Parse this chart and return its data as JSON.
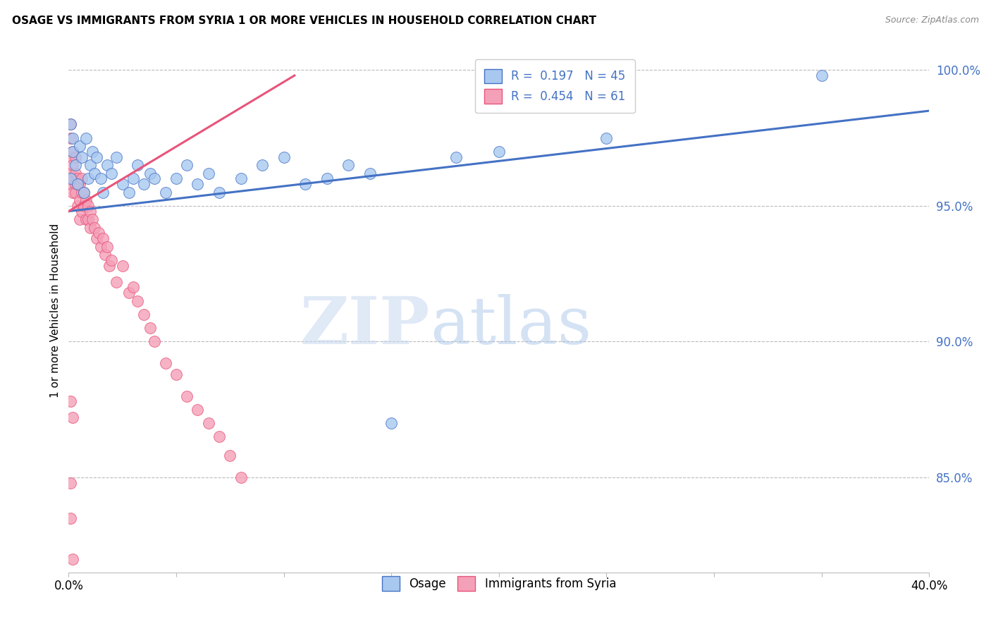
{
  "title": "OSAGE VS IMMIGRANTS FROM SYRIA 1 OR MORE VEHICLES IN HOUSEHOLD CORRELATION CHART",
  "source": "Source: ZipAtlas.com",
  "ylabel": "1 or more Vehicles in Household",
  "xlabel_osage": "Osage",
  "xlabel_syria": "Immigrants from Syria",
  "xmin": 0.0,
  "xmax": 0.4,
  "ymin": 0.815,
  "ymax": 1.008,
  "yticks": [
    0.85,
    0.9,
    0.95,
    1.0
  ],
  "ytick_labels": [
    "85.0%",
    "90.0%",
    "95.0%",
    "100.0%"
  ],
  "xticks": [
    0.0,
    0.05,
    0.1,
    0.15,
    0.2,
    0.25,
    0.3,
    0.35,
    0.4
  ],
  "xtick_labels": [
    "0.0%",
    "",
    "",
    "",
    "",
    "",
    "",
    "",
    "40.0%"
  ],
  "legend_r_osage": "0.197",
  "legend_n_osage": "45",
  "legend_r_syria": "0.454",
  "legend_n_syria": "61",
  "color_osage": "#A8C8F0",
  "color_syria": "#F4A0B8",
  "trend_color_osage": "#4472C4",
  "trend_color_syria": "#E8547A",
  "watermark_zip": "ZIP",
  "watermark_atlas": "atlas",
  "osage_x": [
    0.001,
    0.001,
    0.002,
    0.002,
    0.003,
    0.004,
    0.005,
    0.006,
    0.007,
    0.008,
    0.009,
    0.01,
    0.011,
    0.012,
    0.013,
    0.015,
    0.016,
    0.018,
    0.02,
    0.022,
    0.025,
    0.028,
    0.03,
    0.032,
    0.035,
    0.038,
    0.04,
    0.045,
    0.05,
    0.055,
    0.06,
    0.065,
    0.07,
    0.08,
    0.09,
    0.1,
    0.11,
    0.12,
    0.13,
    0.14,
    0.15,
    0.18,
    0.2,
    0.25,
    0.35
  ],
  "osage_y": [
    0.96,
    0.98,
    0.97,
    0.975,
    0.965,
    0.958,
    0.972,
    0.968,
    0.955,
    0.975,
    0.96,
    0.965,
    0.97,
    0.962,
    0.968,
    0.96,
    0.955,
    0.965,
    0.962,
    0.968,
    0.958,
    0.955,
    0.96,
    0.965,
    0.958,
    0.962,
    0.96,
    0.955,
    0.96,
    0.965,
    0.958,
    0.962,
    0.955,
    0.96,
    0.965,
    0.968,
    0.958,
    0.96,
    0.965,
    0.962,
    0.87,
    0.968,
    0.97,
    0.975,
    0.998
  ],
  "syria_x": [
    0.001,
    0.001,
    0.001,
    0.001,
    0.001,
    0.002,
    0.002,
    0.002,
    0.002,
    0.003,
    0.003,
    0.003,
    0.003,
    0.004,
    0.004,
    0.004,
    0.005,
    0.005,
    0.005,
    0.006,
    0.006,
    0.006,
    0.007,
    0.007,
    0.008,
    0.008,
    0.009,
    0.009,
    0.01,
    0.01,
    0.011,
    0.012,
    0.013,
    0.014,
    0.015,
    0.016,
    0.017,
    0.018,
    0.019,
    0.02,
    0.022,
    0.025,
    0.028,
    0.03,
    0.032,
    0.035,
    0.038,
    0.04,
    0.045,
    0.05,
    0.055,
    0.06,
    0.065,
    0.07,
    0.075,
    0.08,
    0.001,
    0.002,
    0.001,
    0.002,
    0.001
  ],
  "syria_y": [
    0.968,
    0.975,
    0.98,
    0.958,
    0.962,
    0.965,
    0.97,
    0.96,
    0.955,
    0.958,
    0.962,
    0.968,
    0.955,
    0.95,
    0.958,
    0.96,
    0.945,
    0.952,
    0.958,
    0.948,
    0.955,
    0.96,
    0.95,
    0.955,
    0.945,
    0.952,
    0.945,
    0.95,
    0.942,
    0.948,
    0.945,
    0.942,
    0.938,
    0.94,
    0.935,
    0.938,
    0.932,
    0.935,
    0.928,
    0.93,
    0.922,
    0.928,
    0.918,
    0.92,
    0.915,
    0.91,
    0.905,
    0.9,
    0.892,
    0.888,
    0.88,
    0.875,
    0.87,
    0.865,
    0.858,
    0.85,
    0.878,
    0.872,
    0.835,
    0.82,
    0.848
  ],
  "osage_trend_x": [
    0.0,
    0.4
  ],
  "osage_trend_y": [
    0.948,
    0.985
  ],
  "syria_trend_x": [
    0.0,
    0.105
  ],
  "syria_trend_y": [
    0.948,
    0.998
  ]
}
